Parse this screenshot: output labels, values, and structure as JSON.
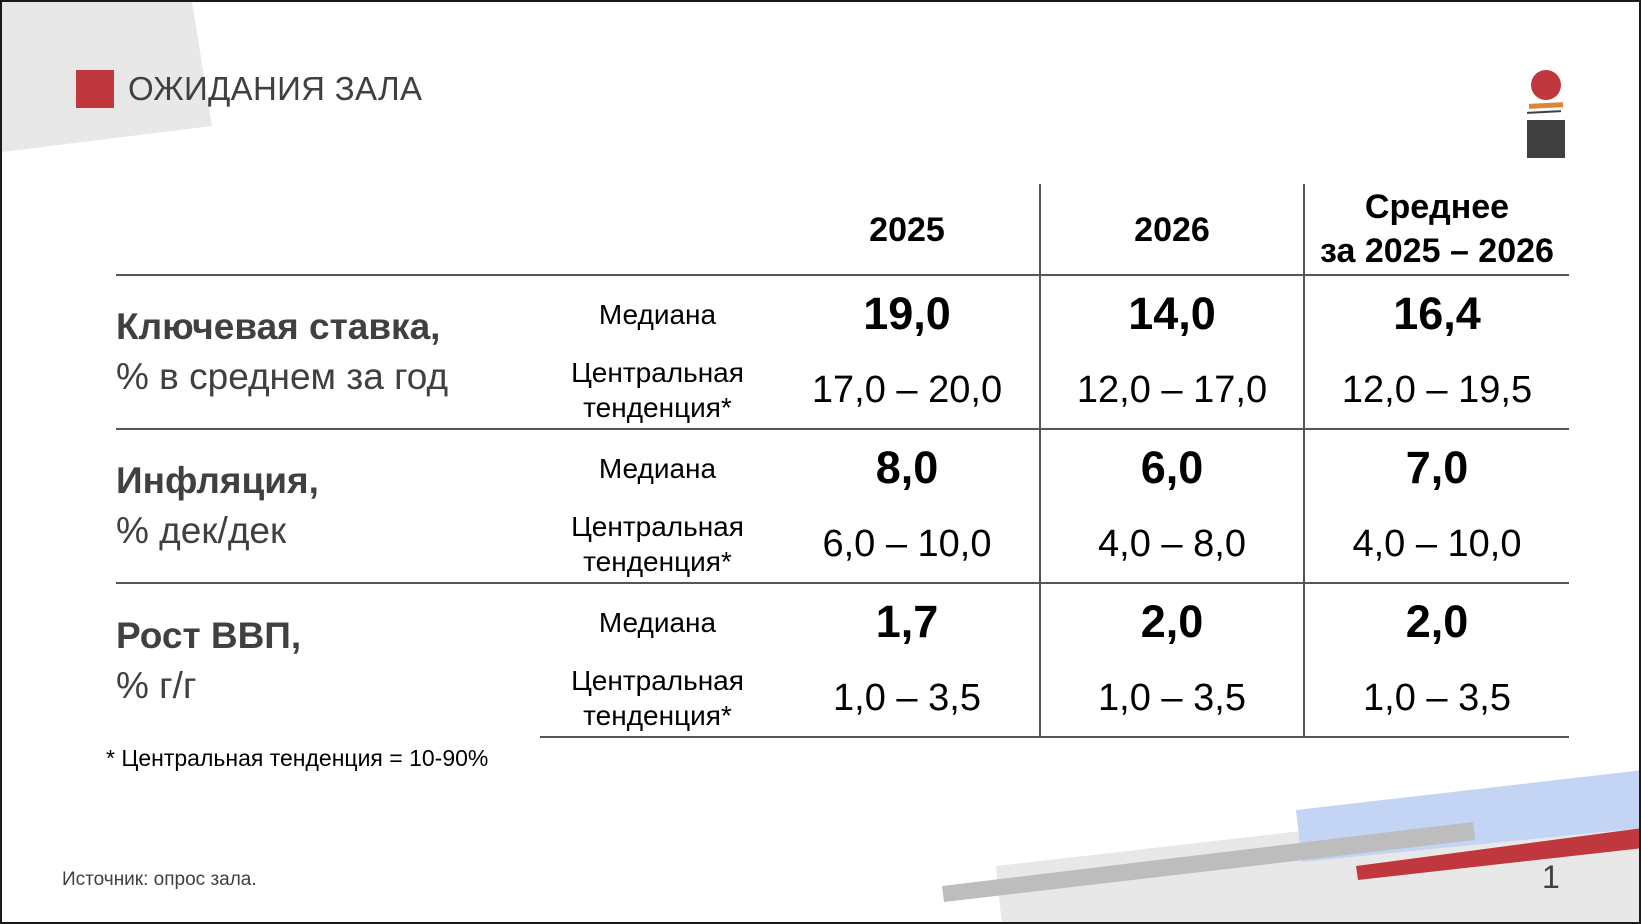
{
  "title": "ОЖИДАНИЯ ЗАЛА",
  "colors": {
    "accent_red": "#c0383e",
    "logo_orange": "#e0843a",
    "logo_dark": "#404040",
    "deco_blue": "#c3d4f5",
    "deco_gray": "#bdbdbd",
    "deco_light": "#e8e8e8",
    "text_gray": "#404040"
  },
  "table": {
    "columns": [
      "2025",
      "2026"
    ],
    "avg_header_line1": "Среднее",
    "avg_header_line2": "за 2025 – 2026",
    "row_groups": [
      {
        "label_main": "Ключевая ставка,",
        "label_sub": "% в среднем за год",
        "median_label": "Медиана",
        "trend_label_1": "Центральная",
        "trend_label_2": "тенденция*",
        "median": [
          "19,0",
          "14,0",
          "16,4"
        ],
        "range": [
          "17,0 – 20,0",
          "12,0 – 17,0",
          "12,0 – 19,5"
        ]
      },
      {
        "label_main": "Инфляция,",
        "label_sub": "% дек/дек",
        "median_label": "Медиана",
        "trend_label_1": "Центральная",
        "trend_label_2": "тенденция*",
        "median": [
          "8,0",
          "6,0",
          "7,0"
        ],
        "range": [
          "6,0 – 10,0",
          "4,0 – 8,0",
          "4,0 – 10,0"
        ]
      },
      {
        "label_main": "Рост ВВП,",
        "label_sub": "% г/г",
        "median_label": "Медиана",
        "trend_label_1": "Центральная",
        "trend_label_2": "тенденция*",
        "median": [
          "1,7",
          "2,0",
          "2,0"
        ],
        "range": [
          "1,0 – 3,5",
          "1,0 – 3,5",
          "1,0 – 3,5"
        ]
      }
    ]
  },
  "footnote": "* Центральная тенденция = 10-90%",
  "source": "Источник: опрос зала.",
  "page_number": "1"
}
